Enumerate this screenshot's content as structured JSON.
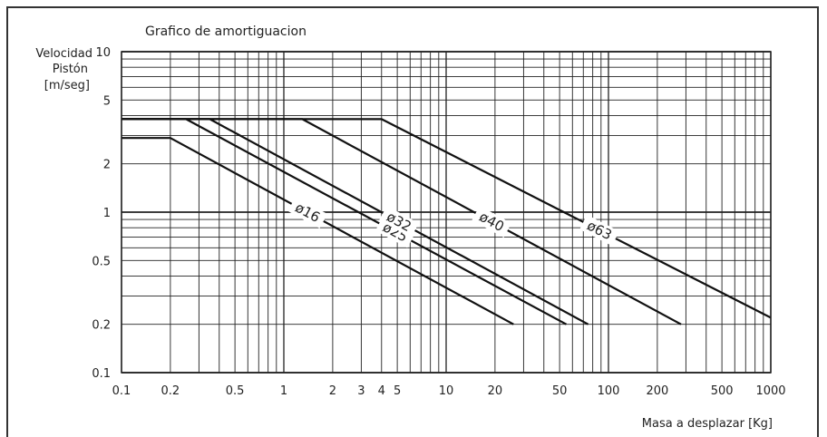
{
  "chart_data": {
    "type": "line",
    "title": "Grafico de amortiguacion",
    "ylabel": [
      "Velocidad",
      "Pistón",
      "[m/seg]"
    ],
    "xlabel": "Masa a desplazar [Kg]",
    "x_scale": "log",
    "y_scale": "log",
    "xlim": [
      0.1,
      1000
    ],
    "ylim": [
      0.1,
      10
    ],
    "x_ticks": [
      0.1,
      0.2,
      0.5,
      1,
      2,
      3,
      4,
      5,
      10,
      20,
      50,
      100,
      200,
      500,
      1000
    ],
    "x_tick_labels": [
      "0.1",
      "0.2",
      "0.5",
      "1",
      "2",
      "3",
      "4",
      "5",
      "10",
      "20",
      "50",
      "100",
      "200",
      "500",
      "1000"
    ],
    "y_ticks": [
      0.1,
      0.2,
      0.5,
      1,
      2,
      5,
      10
    ],
    "y_tick_labels": [
      "0.1",
      "0.2",
      "0.5",
      "1",
      "2",
      "5",
      "10"
    ],
    "grid": true,
    "series": [
      {
        "name": "ø16",
        "points": [
          [
            0.1,
            2.9
          ],
          [
            0.2,
            2.9
          ],
          [
            26,
            0.2
          ]
        ]
      },
      {
        "name": "ø25",
        "points": [
          [
            0.1,
            3.8
          ],
          [
            0.25,
            3.8
          ],
          [
            55,
            0.2
          ]
        ]
      },
      {
        "name": "ø32",
        "points": [
          [
            0.1,
            3.8
          ],
          [
            0.35,
            3.8
          ],
          [
            75,
            0.2
          ]
        ]
      },
      {
        "name": "ø40",
        "points": [
          [
            0.1,
            3.8
          ],
          [
            1.3,
            3.8
          ],
          [
            280,
            0.2
          ]
        ]
      },
      {
        "name": "ø63",
        "points": [
          [
            0.1,
            3.8
          ],
          [
            4.0,
            3.8
          ],
          [
            1000,
            0.22
          ]
        ]
      }
    ]
  }
}
